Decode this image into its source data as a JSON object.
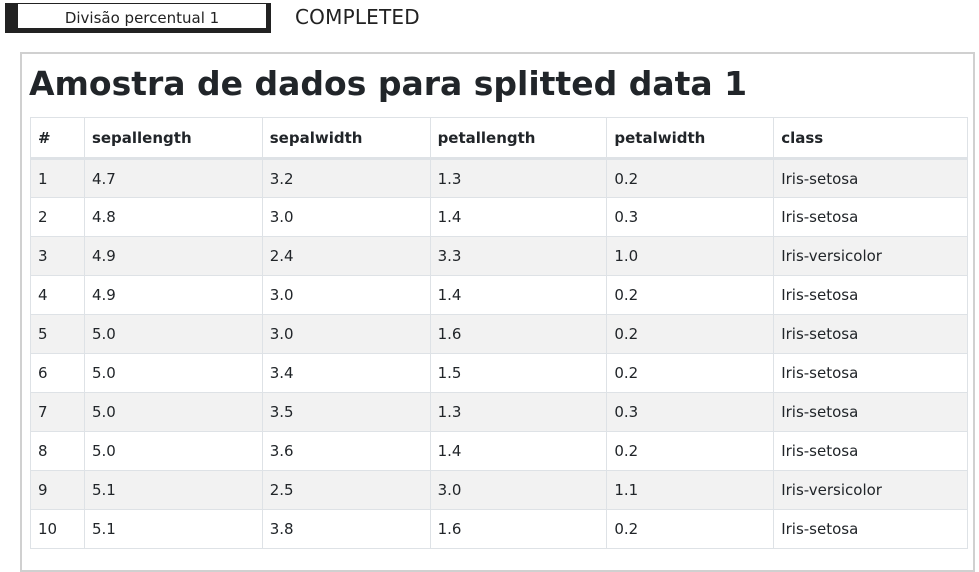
{
  "topbar": {
    "task_label": "Divisão percentual 1",
    "status": "COMPLETED"
  },
  "panel": {
    "title": "Amostra de dados para splitted data 1"
  },
  "table": {
    "columns": [
      "#",
      "sepallength",
      "sepalwidth",
      "petallength",
      "petalwidth",
      "class"
    ],
    "rows": [
      [
        "1",
        "4.7",
        "3.2",
        "1.3",
        "0.2",
        "Iris-setosa"
      ],
      [
        "2",
        "4.8",
        "3.0",
        "1.4",
        "0.3",
        "Iris-setosa"
      ],
      [
        "3",
        "4.9",
        "2.4",
        "3.3",
        "1.0",
        "Iris-versicolor"
      ],
      [
        "4",
        "4.9",
        "3.0",
        "1.4",
        "0.2",
        "Iris-setosa"
      ],
      [
        "5",
        "5.0",
        "3.0",
        "1.6",
        "0.2",
        "Iris-setosa"
      ],
      [
        "6",
        "5.0",
        "3.4",
        "1.5",
        "0.2",
        "Iris-setosa"
      ],
      [
        "7",
        "5.0",
        "3.5",
        "1.3",
        "0.3",
        "Iris-setosa"
      ],
      [
        "8",
        "5.0",
        "3.6",
        "1.4",
        "0.2",
        "Iris-setosa"
      ],
      [
        "9",
        "5.1",
        "2.5",
        "3.0",
        "1.1",
        "Iris-versicolor"
      ],
      [
        "10",
        "5.1",
        "3.8",
        "1.6",
        "0.2",
        "Iris-setosa"
      ]
    ]
  }
}
